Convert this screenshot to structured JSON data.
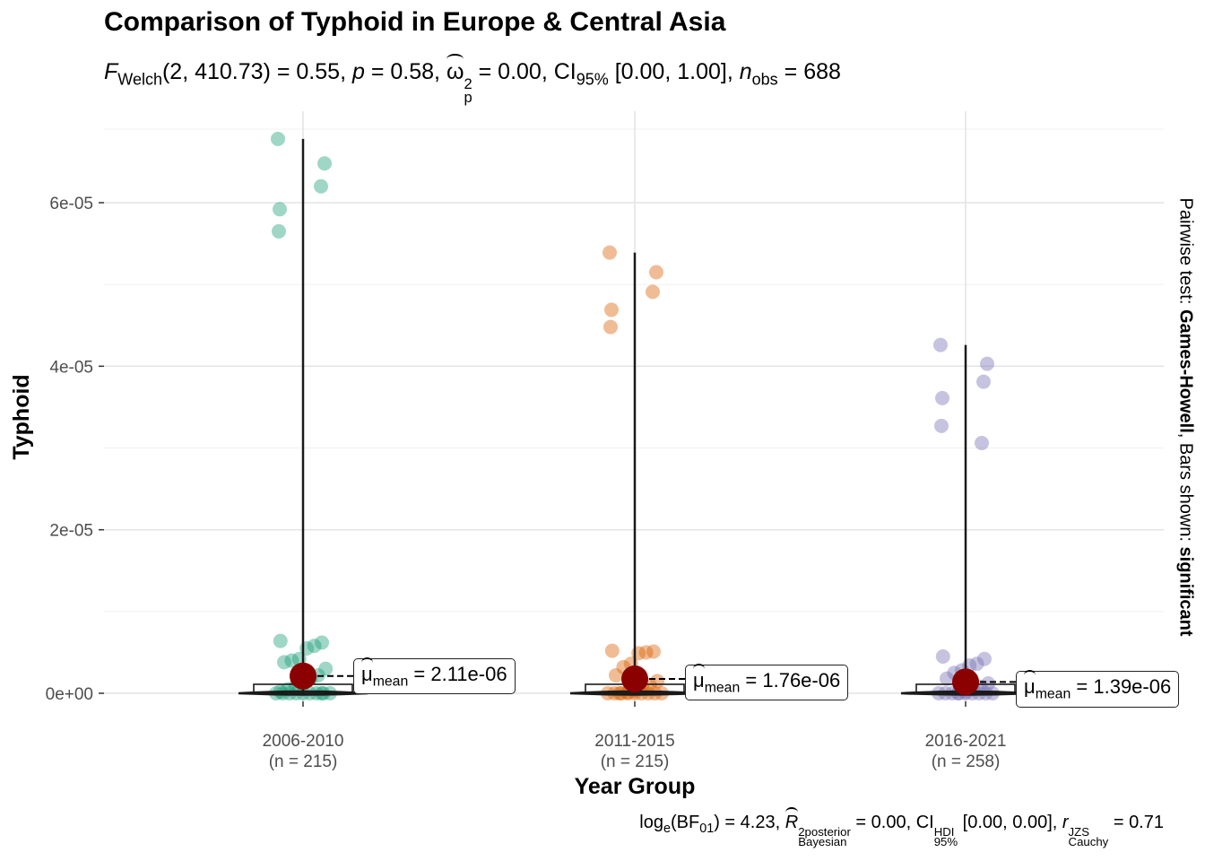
{
  "chart_data": {
    "type": "violin-scatter",
    "title": "Comparison of Typhoid in Europe & Central Asia",
    "subtitle": {
      "stat_name": "Welch",
      "df": "2, 410.73",
      "statistic": "0.55",
      "p": "0.58",
      "effsize_symbol": "ω",
      "effsize_sup": "2",
      "effsize_sub": "p",
      "effsize": "0.00",
      "ci_level": "95%",
      "ci": "[0.00, 1.00]",
      "n_label": "obs",
      "n": "688"
    },
    "caption": {
      "log_base": "e",
      "bf_sub": "01",
      "bf": "4.23",
      "r2_sup": "2",
      "r2_sup_label": "posterior",
      "r2_sub": "Bayesian",
      "r2": "0.00",
      "ci_sup": "HDI",
      "ci_sub": "95%",
      "ci": "[0.00, 0.00]",
      "r_sup": "JZS",
      "r_sub": "Cauchy",
      "r": "0.71"
    },
    "xlabel": "Year Group",
    "ylabel": "Typhoid",
    "right_label_parts": [
      "Pairwise test: ",
      "Games-Howell",
      ", Bars shown: ",
      "significant"
    ],
    "ylim": [
      -1.5e-06,
      7e-05
    ],
    "yticks": [
      0,
      2e-05,
      4e-05,
      6e-05
    ],
    "ytick_labels": [
      "0e+00",
      "2e-05",
      "4e-05",
      "6e-05"
    ],
    "grid": true,
    "legend": "none",
    "mean_color": "#8B0000",
    "groups": [
      {
        "name": "2006-2010",
        "n_label": "(n = 215)",
        "color": "#1B9E77",
        "mean": 2.11e-06,
        "mean_label": "2.11e-06",
        "max": 6.78e-05,
        "outliers": [
          6.78e-05,
          6.48e-05,
          6.2e-05,
          5.92e-05,
          5.65e-05
        ],
        "cluster": [
          6.4e-06,
          6.2e-06,
          5.8e-06,
          5.5e-06,
          4.2e-06,
          4e-06,
          3.8e-06,
          3e-06,
          2.2e-06,
          1.8e-06,
          1.2e-06,
          8e-07,
          5e-07,
          2e-07,
          0.0
        ]
      },
      {
        "name": "2011-2015",
        "n_label": "(n = 215)",
        "color": "#D95F02",
        "mean": 1.76e-06,
        "mean_label": "1.76e-06",
        "max": 5.39e-05,
        "outliers": [
          5.39e-05,
          5.15e-05,
          4.91e-05,
          4.69e-05,
          4.48e-05
        ],
        "cluster": [
          5.2e-06,
          5.1e-06,
          5e-06,
          4.9e-06,
          3.6e-06,
          3.2e-06,
          2.2e-06,
          1.5e-06,
          1e-06,
          6e-07,
          3e-07,
          1e-07,
          0.0
        ]
      },
      {
        "name": "2016-2021",
        "n_label": "(n = 258)",
        "color": "#7570B3",
        "mean": 1.39e-06,
        "mean_label": "1.39e-06",
        "max": 4.26e-05,
        "outliers": [
          4.26e-05,
          4.03e-05,
          3.81e-05,
          3.61e-05,
          3.27e-05,
          3.06e-05
        ],
        "cluster": [
          4.5e-06,
          4.2e-06,
          3.6e-06,
          3.4e-06,
          2.8e-06,
          2.5e-06,
          1.8e-06,
          1.2e-06,
          8e-07,
          5e-07,
          2e-07,
          0.0
        ]
      }
    ]
  }
}
